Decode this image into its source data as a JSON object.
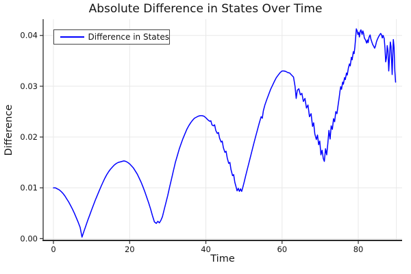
{
  "title": "Absolute Difference in States Over Time",
  "legend": {
    "label": "Difference in States"
  },
  "axes": {
    "x": {
      "label": "Time"
    },
    "y": {
      "label": "Difference"
    }
  },
  "colors": {
    "line": "#0000ff",
    "grid": "#e8e8e8",
    "spine": "#2a2a2a",
    "tick_text": "#111111",
    "legend_border": "#454545",
    "background": "#ffffff"
  },
  "chart_data": {
    "type": "line",
    "title": "Absolute Difference in States Over Time",
    "xlabel": "Time",
    "ylabel": "Difference",
    "grid": true,
    "legend_position": "top-left",
    "xlim": [
      -2.7,
      91.5
    ],
    "ylim": [
      -0.00036,
      0.0432
    ],
    "xticks": [
      {
        "v": 0,
        "label": "0"
      },
      {
        "v": 20,
        "label": "20"
      },
      {
        "v": 40,
        "label": "40"
      },
      {
        "v": 60,
        "label": "60"
      },
      {
        "v": 80,
        "label": "80"
      }
    ],
    "xgrid_extra": [
      90
    ],
    "yticks": [
      {
        "v": 0.0,
        "label": "0.00"
      },
      {
        "v": 0.01,
        "label": "0.01"
      },
      {
        "v": 0.02,
        "label": "0.02"
      },
      {
        "v": 0.03,
        "label": "0.03"
      },
      {
        "v": 0.04,
        "label": "0.04"
      }
    ],
    "series": [
      {
        "name": "Difference in States",
        "color": "#0000ff",
        "points": [
          [
            0,
            0.01
          ],
          [
            0.5,
            0.01
          ],
          [
            1,
            0.0098
          ],
          [
            1.5,
            0.0096
          ],
          [
            2,
            0.0093
          ],
          [
            2.5,
            0.0089
          ],
          [
            3,
            0.0084
          ],
          [
            3.5,
            0.0078
          ],
          [
            4,
            0.0072
          ],
          [
            4.5,
            0.0065
          ],
          [
            5,
            0.0058
          ],
          [
            5.5,
            0.005
          ],
          [
            6,
            0.0041
          ],
          [
            6.5,
            0.0032
          ],
          [
            7,
            0.0022
          ],
          [
            7.5,
            0.0003
          ],
          [
            8,
            0.0014
          ],
          [
            8.5,
            0.0025
          ],
          [
            9,
            0.0036
          ],
          [
            9.5,
            0.0046
          ],
          [
            10,
            0.0056
          ],
          [
            10.5,
            0.0066
          ],
          [
            11,
            0.0076
          ],
          [
            11.5,
            0.0085
          ],
          [
            12,
            0.0094
          ],
          [
            12.5,
            0.0103
          ],
          [
            13,
            0.0111
          ],
          [
            13.5,
            0.0119
          ],
          [
            14,
            0.0126
          ],
          [
            14.5,
            0.0132
          ],
          [
            15,
            0.0137
          ],
          [
            15.5,
            0.0141
          ],
          [
            16,
            0.0145
          ],
          [
            16.5,
            0.0148
          ],
          [
            17,
            0.015
          ],
          [
            17.5,
            0.0151
          ],
          [
            18,
            0.0152
          ],
          [
            18.5,
            0.0153
          ],
          [
            19,
            0.0152
          ],
          [
            19.5,
            0.015
          ],
          [
            20,
            0.0147
          ],
          [
            20.5,
            0.0143
          ],
          [
            21,
            0.0139
          ],
          [
            21.5,
            0.0133
          ],
          [
            22,
            0.0127
          ],
          [
            22.5,
            0.0119
          ],
          [
            23,
            0.0111
          ],
          [
            23.5,
            0.0102
          ],
          [
            24,
            0.0092
          ],
          [
            24.5,
            0.0081
          ],
          [
            25,
            0.007
          ],
          [
            25.5,
            0.0058
          ],
          [
            26,
            0.0045
          ],
          [
            26.5,
            0.0033
          ],
          [
            27,
            0.003
          ],
          [
            27.4,
            0.0034
          ],
          [
            27.8,
            0.0031
          ],
          [
            28.2,
            0.0036
          ],
          [
            28.6,
            0.0043
          ],
          [
            29,
            0.0055
          ],
          [
            29.5,
            0.007
          ],
          [
            30,
            0.0085
          ],
          [
            30.5,
            0.0102
          ],
          [
            31,
            0.0118
          ],
          [
            31.5,
            0.0134
          ],
          [
            32,
            0.015
          ],
          [
            32.5,
            0.0163
          ],
          [
            33,
            0.0176
          ],
          [
            33.5,
            0.0187
          ],
          [
            34,
            0.0197
          ],
          [
            34.5,
            0.0206
          ],
          [
            35,
            0.0215
          ],
          [
            35.5,
            0.0222
          ],
          [
            36,
            0.0228
          ],
          [
            36.5,
            0.0233
          ],
          [
            37,
            0.0237
          ],
          [
            37.5,
            0.0239
          ],
          [
            38,
            0.0241
          ],
          [
            38.5,
            0.0242
          ],
          [
            39,
            0.0242
          ],
          [
            39.5,
            0.0241
          ],
          [
            40,
            0.0238
          ],
          [
            40.5,
            0.0234
          ],
          [
            41,
            0.0231
          ],
          [
            41.3,
            0.0232
          ],
          [
            41.6,
            0.0224
          ],
          [
            42,
            0.0222
          ],
          [
            42.3,
            0.0224
          ],
          [
            42.6,
            0.0213
          ],
          [
            43,
            0.0207
          ],
          [
            43.3,
            0.0209
          ],
          [
            43.6,
            0.0198
          ],
          [
            44,
            0.019
          ],
          [
            44.3,
            0.0192
          ],
          [
            44.6,
            0.0179
          ],
          [
            45,
            0.017
          ],
          [
            45.3,
            0.0172
          ],
          [
            45.6,
            0.0159
          ],
          [
            46,
            0.0148
          ],
          [
            46.3,
            0.015
          ],
          [
            46.6,
            0.0136
          ],
          [
            47,
            0.0124
          ],
          [
            47.3,
            0.0126
          ],
          [
            47.6,
            0.0111
          ],
          [
            48,
            0.01
          ],
          [
            48.2,
            0.0094
          ],
          [
            48.5,
            0.0099
          ],
          [
            48.8,
            0.0093
          ],
          [
            49.1,
            0.0098
          ],
          [
            49.4,
            0.0093
          ],
          [
            49.7,
            0.0101
          ],
          [
            50,
            0.011
          ],
          [
            50.5,
            0.0125
          ],
          [
            51,
            0.014
          ],
          [
            51.5,
            0.0155
          ],
          [
            52,
            0.017
          ],
          [
            52.5,
            0.0185
          ],
          [
            53,
            0.0199
          ],
          [
            53.5,
            0.0213
          ],
          [
            54,
            0.0227
          ],
          [
            54.5,
            0.024
          ],
          [
            54.8,
            0.0237
          ],
          [
            55.1,
            0.0252
          ],
          [
            55.5,
            0.0263
          ],
          [
            56,
            0.0274
          ],
          [
            56.5,
            0.0284
          ],
          [
            57,
            0.0294
          ],
          [
            57.5,
            0.0302
          ],
          [
            58,
            0.031
          ],
          [
            58.5,
            0.0317
          ],
          [
            59,
            0.0322
          ],
          [
            59.5,
            0.0327
          ],
          [
            60,
            0.033
          ],
          [
            60.5,
            0.033
          ],
          [
            61,
            0.0329
          ],
          [
            61.5,
            0.0327
          ],
          [
            62,
            0.0326
          ],
          [
            62.5,
            0.0322
          ],
          [
            63,
            0.0318
          ],
          [
            63.4,
            0.03
          ],
          [
            63.7,
            0.0276
          ],
          [
            64,
            0.0292
          ],
          [
            64.4,
            0.0295
          ],
          [
            64.8,
            0.0283
          ],
          [
            65.2,
            0.0286
          ],
          [
            65.6,
            0.027
          ],
          [
            66,
            0.0276
          ],
          [
            66.4,
            0.0257
          ],
          [
            66.8,
            0.0263
          ],
          [
            67.2,
            0.024
          ],
          [
            67.6,
            0.0246
          ],
          [
            68,
            0.0221
          ],
          [
            68.3,
            0.0228
          ],
          [
            68.6,
            0.0206
          ],
          [
            69,
            0.0195
          ],
          [
            69.3,
            0.0204
          ],
          [
            69.6,
            0.0185
          ],
          [
            69.9,
            0.0192
          ],
          [
            70.2,
            0.0165
          ],
          [
            70.5,
            0.0174
          ],
          [
            70.8,
            0.0158
          ],
          [
            71.1,
            0.0152
          ],
          [
            71.4,
            0.0177
          ],
          [
            71.7,
            0.0165
          ],
          [
            72,
            0.0186
          ],
          [
            72.3,
            0.0213
          ],
          [
            72.6,
            0.0196
          ],
          [
            72.9,
            0.0222
          ],
          [
            73.2,
            0.0215
          ],
          [
            73.5,
            0.0236
          ],
          [
            73.8,
            0.023
          ],
          [
            74.1,
            0.025
          ],
          [
            74.4,
            0.0246
          ],
          [
            74.7,
            0.0262
          ],
          [
            75,
            0.0278
          ],
          [
            75.2,
            0.029
          ],
          [
            75.4,
            0.0299
          ],
          [
            75.6,
            0.0294
          ],
          [
            75.9,
            0.0308
          ],
          [
            76.1,
            0.0304
          ],
          [
            76.4,
            0.0317
          ],
          [
            76.6,
            0.0313
          ],
          [
            76.9,
            0.0326
          ],
          [
            77.1,
            0.0322
          ],
          [
            77.4,
            0.0336
          ],
          [
            77.7,
            0.0344
          ],
          [
            77.9,
            0.034
          ],
          [
            78.2,
            0.0357
          ],
          [
            78.4,
            0.0352
          ],
          [
            78.7,
            0.0368
          ],
          [
            78.9,
            0.0364
          ],
          [
            79.1,
            0.0376
          ],
          [
            79.3,
            0.0394
          ],
          [
            79.5,
            0.0413
          ],
          [
            79.7,
            0.0409
          ],
          [
            79.9,
            0.0402
          ],
          [
            80.1,
            0.0406
          ],
          [
            80.3,
            0.0397
          ],
          [
            80.5,
            0.0408
          ],
          [
            80.7,
            0.0411
          ],
          [
            81,
            0.0402
          ],
          [
            81.2,
            0.0409
          ],
          [
            81.4,
            0.0404
          ],
          [
            81.6,
            0.0395
          ],
          [
            81.9,
            0.0391
          ],
          [
            82.2,
            0.0385
          ],
          [
            82.4,
            0.0391
          ],
          [
            82.6,
            0.0386
          ],
          [
            82.8,
            0.0396
          ],
          [
            83.1,
            0.0401
          ],
          [
            83.3,
            0.0393
          ],
          [
            83.6,
            0.0386
          ],
          [
            83.8,
            0.0382
          ],
          [
            84.1,
            0.0378
          ],
          [
            84.3,
            0.0375
          ],
          [
            84.5,
            0.0379
          ],
          [
            84.8,
            0.0388
          ],
          [
            85,
            0.0392
          ],
          [
            85.3,
            0.0397
          ],
          [
            85.6,
            0.0401
          ],
          [
            85.9,
            0.0404
          ],
          [
            86.1,
            0.0401
          ],
          [
            86.3,
            0.0395
          ],
          [
            86.5,
            0.04
          ],
          [
            86.8,
            0.0394
          ],
          [
            87,
            0.0375
          ],
          [
            87.2,
            0.0348
          ],
          [
            87.4,
            0.0356
          ],
          [
            87.6,
            0.038
          ],
          [
            87.8,
            0.037
          ],
          [
            88,
            0.033
          ],
          [
            88.2,
            0.0356
          ],
          [
            88.4,
            0.0387
          ],
          [
            88.6,
            0.0378
          ],
          [
            88.8,
            0.034
          ],
          [
            88.9,
            0.0323
          ],
          [
            89.1,
            0.037
          ],
          [
            89.2,
            0.0392
          ],
          [
            89.4,
            0.0376
          ],
          [
            89.6,
            0.033
          ],
          [
            89.8,
            0.0308
          ]
        ]
      }
    ]
  }
}
